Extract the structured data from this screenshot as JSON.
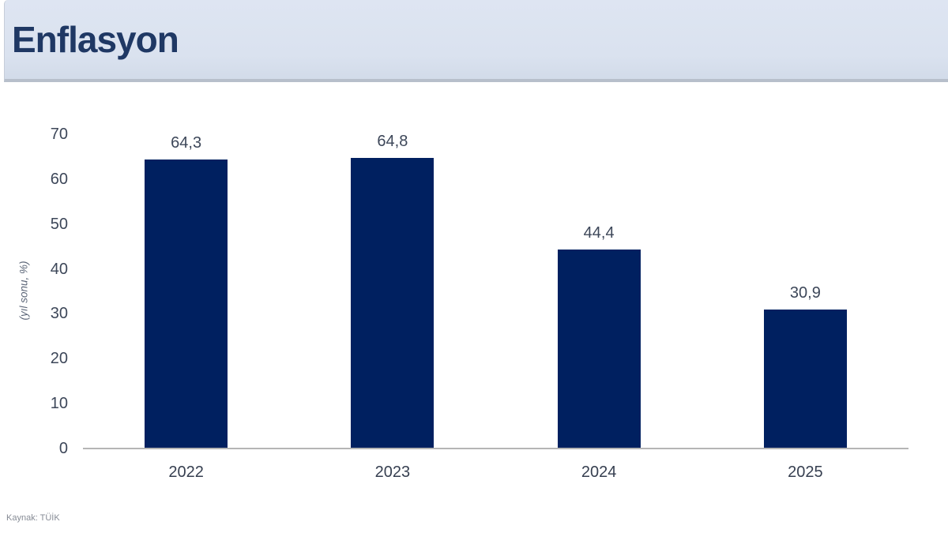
{
  "header": {
    "title": "Enflasyon"
  },
  "footer": {
    "source": "Kaynak: TÜİK"
  },
  "chart_data": {
    "type": "bar",
    "title": "Enflasyon",
    "categories": [
      "2022",
      "2023",
      "2024",
      "2025"
    ],
    "values": [
      64.3,
      64.8,
      44.4,
      30.9
    ],
    "value_labels": [
      "64,3",
      "64,8",
      "44,4",
      "30,9"
    ],
    "xlabel": "",
    "ylabel": "(yıl sonu, %)",
    "ylim": [
      0,
      70
    ],
    "yticks": [
      0,
      10,
      20,
      30,
      40,
      50,
      60,
      70
    ],
    "grid": "off",
    "legend": "none",
    "bar_color": "#002060"
  },
  "colors": {
    "banner_background": "#dae2ef",
    "title_text": "#1f3864",
    "bar": "#002060",
    "axis_line": "#b5b5b5",
    "tick_text": "#3d4759",
    "source_text": "#868b95"
  }
}
